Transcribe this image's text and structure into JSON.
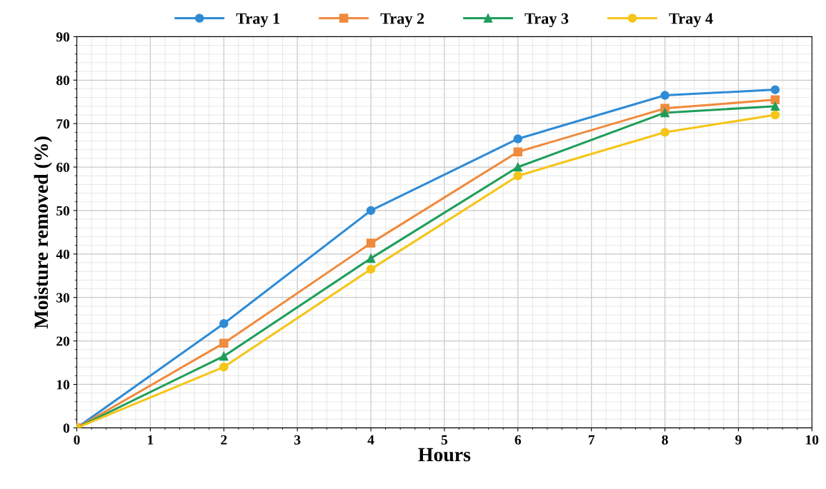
{
  "chart_data": {
    "type": "line",
    "xlabel": "Hours",
    "ylabel": "Moisture removed (%)",
    "x": [
      0,
      2,
      4,
      6,
      8,
      9.5
    ],
    "series": [
      {
        "name": "Tray 1",
        "color": "#2e8bd6",
        "marker": "circle",
        "values": [
          0,
          24,
          50,
          66.5,
          76.5,
          77.8
        ]
      },
      {
        "name": "Tray 2",
        "color": "#f08a3c",
        "marker": "square",
        "values": [
          0,
          19.5,
          42.5,
          63.5,
          73.5,
          75.5
        ]
      },
      {
        "name": "Tray 3",
        "color": "#1e9e5a",
        "marker": "triangle",
        "values": [
          0,
          16.5,
          39,
          60,
          72.5,
          74
        ]
      },
      {
        "name": "Tray 4",
        "color": "#f5c518",
        "marker": "circle",
        "values": [
          0,
          14,
          36.5,
          58,
          68,
          72
        ]
      }
    ],
    "xlim": [
      0,
      10
    ],
    "xticks": [
      0,
      1,
      2,
      3,
      4,
      5,
      6,
      7,
      8,
      9,
      10
    ],
    "ylim": [
      0,
      90
    ],
    "yticks": [
      0,
      10,
      20,
      30,
      40,
      50,
      60,
      70,
      80,
      90
    ],
    "grid": true,
    "legend": "top",
    "line_style": "solid"
  }
}
